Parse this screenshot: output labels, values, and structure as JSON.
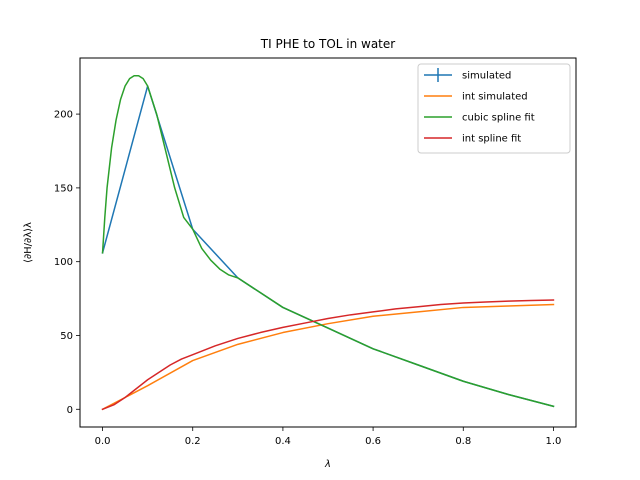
{
  "chart_data": {
    "type": "line",
    "title": "TI PHE to TOL in water",
    "xlabel": "λ",
    "ylabel": "⟨∂H/∂λ⟩λ",
    "xlim": [
      -0.05,
      1.05
    ],
    "ylim": [
      -12,
      238
    ],
    "x_ticks": [
      0.0,
      0.2,
      0.4,
      0.6,
      0.8,
      1.0
    ],
    "x_tick_labels": [
      "0.0",
      "0.2",
      "0.4",
      "0.6",
      "0.8",
      "1.0"
    ],
    "y_ticks": [
      0,
      50,
      100,
      150,
      200
    ],
    "y_tick_labels": [
      "0",
      "50",
      "100",
      "150",
      "200"
    ],
    "legend_position": "top-right",
    "grid": false,
    "series": [
      {
        "name": "simulated",
        "color": "#1f77b4",
        "marker": "errorbar",
        "x": [
          0.0,
          0.1,
          0.2,
          0.3,
          0.4,
          0.5,
          0.6,
          0.7,
          0.8,
          0.9,
          1.0
        ],
        "y": [
          106,
          219,
          122,
          89,
          69,
          55,
          41,
          30,
          19,
          10,
          2
        ]
      },
      {
        "name": "int simulated",
        "color": "#ff7f0e",
        "x": [
          0.0,
          0.1,
          0.2,
          0.3,
          0.4,
          0.5,
          0.6,
          0.7,
          0.8,
          0.9,
          1.0
        ],
        "y": [
          0,
          16,
          33,
          44,
          52,
          58,
          63,
          66,
          69,
          70,
          71
        ]
      },
      {
        "name": "cubic spline fit",
        "color": "#2ca02c",
        "x": [
          0.0,
          0.005,
          0.01,
          0.02,
          0.03,
          0.04,
          0.05,
          0.06,
          0.07,
          0.08,
          0.09,
          0.1,
          0.12,
          0.14,
          0.16,
          0.18,
          0.2,
          0.22,
          0.24,
          0.26,
          0.28,
          0.3,
          0.35,
          0.4,
          0.5,
          0.6,
          0.7,
          0.8,
          0.9,
          1.0
        ],
        "y": [
          106,
          130,
          150,
          177,
          196,
          210,
          219,
          224,
          226,
          226,
          224,
          219,
          200,
          175,
          150,
          130,
          122,
          109,
          101,
          95,
          91,
          89,
          79,
          69,
          55,
          41,
          30,
          19,
          10,
          2
        ]
      },
      {
        "name": "int spline fit",
        "color": "#d62728",
        "x": [
          0.0,
          0.025,
          0.05,
          0.075,
          0.1,
          0.125,
          0.15,
          0.175,
          0.2,
          0.25,
          0.3,
          0.35,
          0.4,
          0.45,
          0.5,
          0.55,
          0.6,
          0.65,
          0.7,
          0.75,
          0.8,
          0.85,
          0.9,
          0.95,
          1.0
        ],
        "y": [
          0,
          3,
          8,
          14,
          20,
          25,
          30,
          34,
          37,
          43,
          48,
          52,
          55.5,
          58.5,
          61.5,
          64,
          66,
          68,
          69.5,
          71,
          72,
          72.7,
          73.3,
          73.7,
          74
        ]
      }
    ]
  }
}
